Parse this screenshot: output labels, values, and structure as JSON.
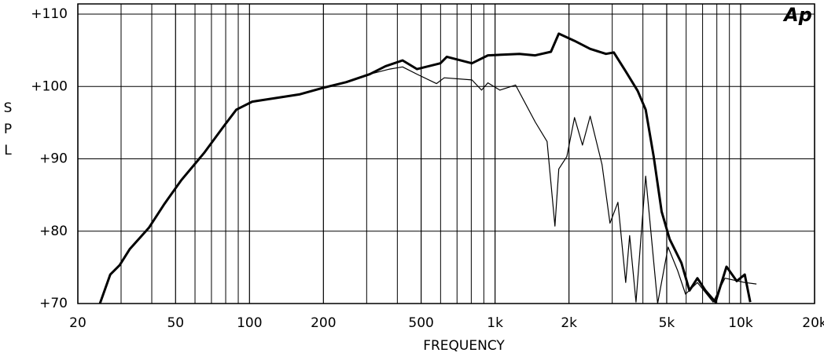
{
  "chart_data": {
    "type": "line",
    "logo": "Ap",
    "ylabel": "SPL",
    "xlabel": "FREQUENCY",
    "xscale": "log",
    "xlim": [
      20,
      20000
    ],
    "ylim": [
      70,
      110
    ],
    "xticks": [
      20,
      50,
      100,
      200,
      500,
      {
        "value": 1000,
        "label": "1k"
      },
      {
        "value": 2000,
        "label": "2k"
      },
      {
        "value": 5000,
        "label": "5k"
      },
      {
        "value": 10000,
        "label": "10k"
      },
      {
        "value": 20000,
        "label": "20k"
      }
    ],
    "xminor": [
      30,
      40,
      60,
      70,
      80,
      90,
      300,
      400,
      600,
      700,
      800,
      900,
      3000,
      4000,
      6000,
      7000,
      8000,
      9000
    ],
    "yticks": [
      {
        "value": 70,
        "label": "+70"
      },
      {
        "value": 80,
        "label": "+80"
      },
      {
        "value": 90,
        "label": "+90"
      },
      {
        "value": 100,
        "label": "+100"
      },
      {
        "value": 110,
        "label": "+110"
      }
    ],
    "grid": true,
    "series": [
      {
        "color": "#000000",
        "width": 3,
        "x": [
          24.6,
          27.1,
          29.6,
          32.5,
          39,
          45.1,
          52.6,
          65.3,
          78.9,
          88.4,
          102.6,
          127.9,
          159.5,
          198.9,
          247.9,
          309,
          358,
          420,
          481,
          599,
          636,
          805,
          935,
          1257,
          1457,
          1688,
          1817,
          2106,
          2440,
          2829,
          3046,
          3403,
          3808,
          4106,
          4425,
          4769,
          5140,
          5742,
          6188,
          6669,
          7187,
          7900,
          8759,
          9642,
          10390,
          10940
        ],
        "values": [
          70,
          74,
          75.3,
          77.5,
          80.5,
          83.8,
          87,
          90.8,
          94.6,
          96.8,
          97.9,
          98.4,
          98.9,
          99.8,
          100.6,
          101.7,
          102.8,
          103.6,
          102.4,
          103.2,
          104.1,
          103.2,
          104.3,
          104.5,
          104.3,
          104.8,
          107.3,
          106.3,
          105.2,
          104.5,
          104.7,
          102.1,
          99.4,
          96.8,
          90.3,
          82.7,
          78.9,
          75.6,
          71.8,
          73.5,
          71.8,
          70.2,
          75.1,
          73.1,
          74,
          70.2
        ]
      },
      {
        "color": "#000000",
        "width": 1.2,
        "x": [
          198.9,
          247.9,
          309,
          372,
          420,
          481,
          577,
          621,
          805,
          881,
          935,
          1046,
          1212,
          1457,
          1629,
          1753,
          1817,
          1959,
          2106,
          2270,
          2440,
          2726,
          2937,
          3164,
          3403,
          3532,
          3749,
          4106,
          4590,
          5064,
          5535,
          5964,
          6669,
          7725,
          8629,
          10390,
          11600
        ],
        "values": [
          99.8,
          100.6,
          101.7,
          102.4,
          102.7,
          101.7,
          100.4,
          101.2,
          100.9,
          99.5,
          100.5,
          99.5,
          100.2,
          95.1,
          92.4,
          80.7,
          88.6,
          90.3,
          95.7,
          91.9,
          95.9,
          89.2,
          81.1,
          84,
          72.9,
          79.4,
          70.2,
          87.6,
          70,
          77.8,
          74.6,
          71.3,
          72.9,
          70.2,
          73.5,
          72.9,
          72.7
        ]
      }
    ]
  }
}
